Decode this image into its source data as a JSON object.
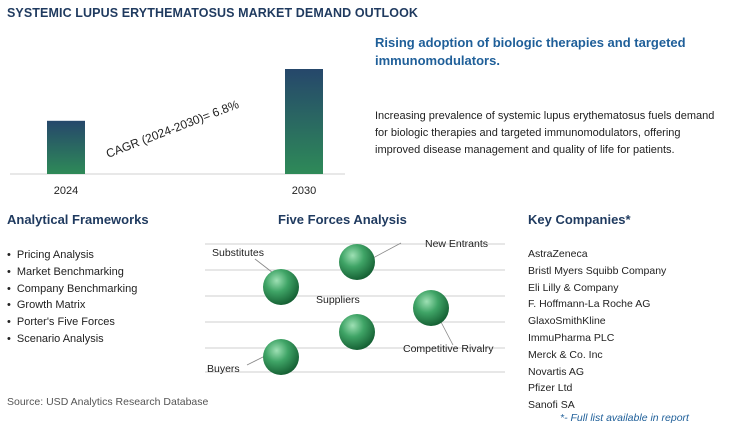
{
  "title": "SYSTEMIC LUPUS ERYTHEMATOSUS MARKET DEMAND OUTLOOK",
  "chart_data": {
    "type": "bar",
    "categories": [
      "2024",
      "2030"
    ],
    "values": [
      0.38,
      0.75
    ],
    "annotation": "CAGR (2024-2030)=   6.8%",
    "colors": {
      "top": "#26476b",
      "bottom": "#2e8a58"
    }
  },
  "headline": "Rising adoption of biologic therapies and targeted immunomodulators.",
  "description": "Increasing prevalence of systemic lupus erythematosus fuels demand for biologic therapies and targeted immunomodulators, offering improved disease management and quality of life for patients.",
  "frameworks": {
    "title": "Analytical Frameworks",
    "items": [
      "Pricing Analysis",
      "Market Benchmarking",
      "Company Benchmarking",
      "Growth Matrix",
      "Porter's Five Forces",
      "Scenario Analysis"
    ]
  },
  "five_forces": {
    "title": "Five Forces Analysis",
    "labels": {
      "substitutes": "Substitutes",
      "new_entrants": "New Entrants",
      "suppliers": "Suppliers",
      "competitive_rivalry": "Competitive Rivalry",
      "buyers": "Buyers"
    }
  },
  "companies": {
    "title": "Key Companies*",
    "items": [
      "AstraZeneca",
      "Bristl Myers Squibb Company",
      "Eli Lilly & Company",
      "F. Hoffmann-La Roche AG",
      "GlaxoSmithKline",
      "ImmuPharma PLC",
      "Merck & Co. Inc",
      "Novartis AG",
      "Pfizer Ltd",
      "Sanofi SA"
    ],
    "footnote": "*- Full list available in report"
  },
  "source": "Source: USD Analytics Research Database"
}
